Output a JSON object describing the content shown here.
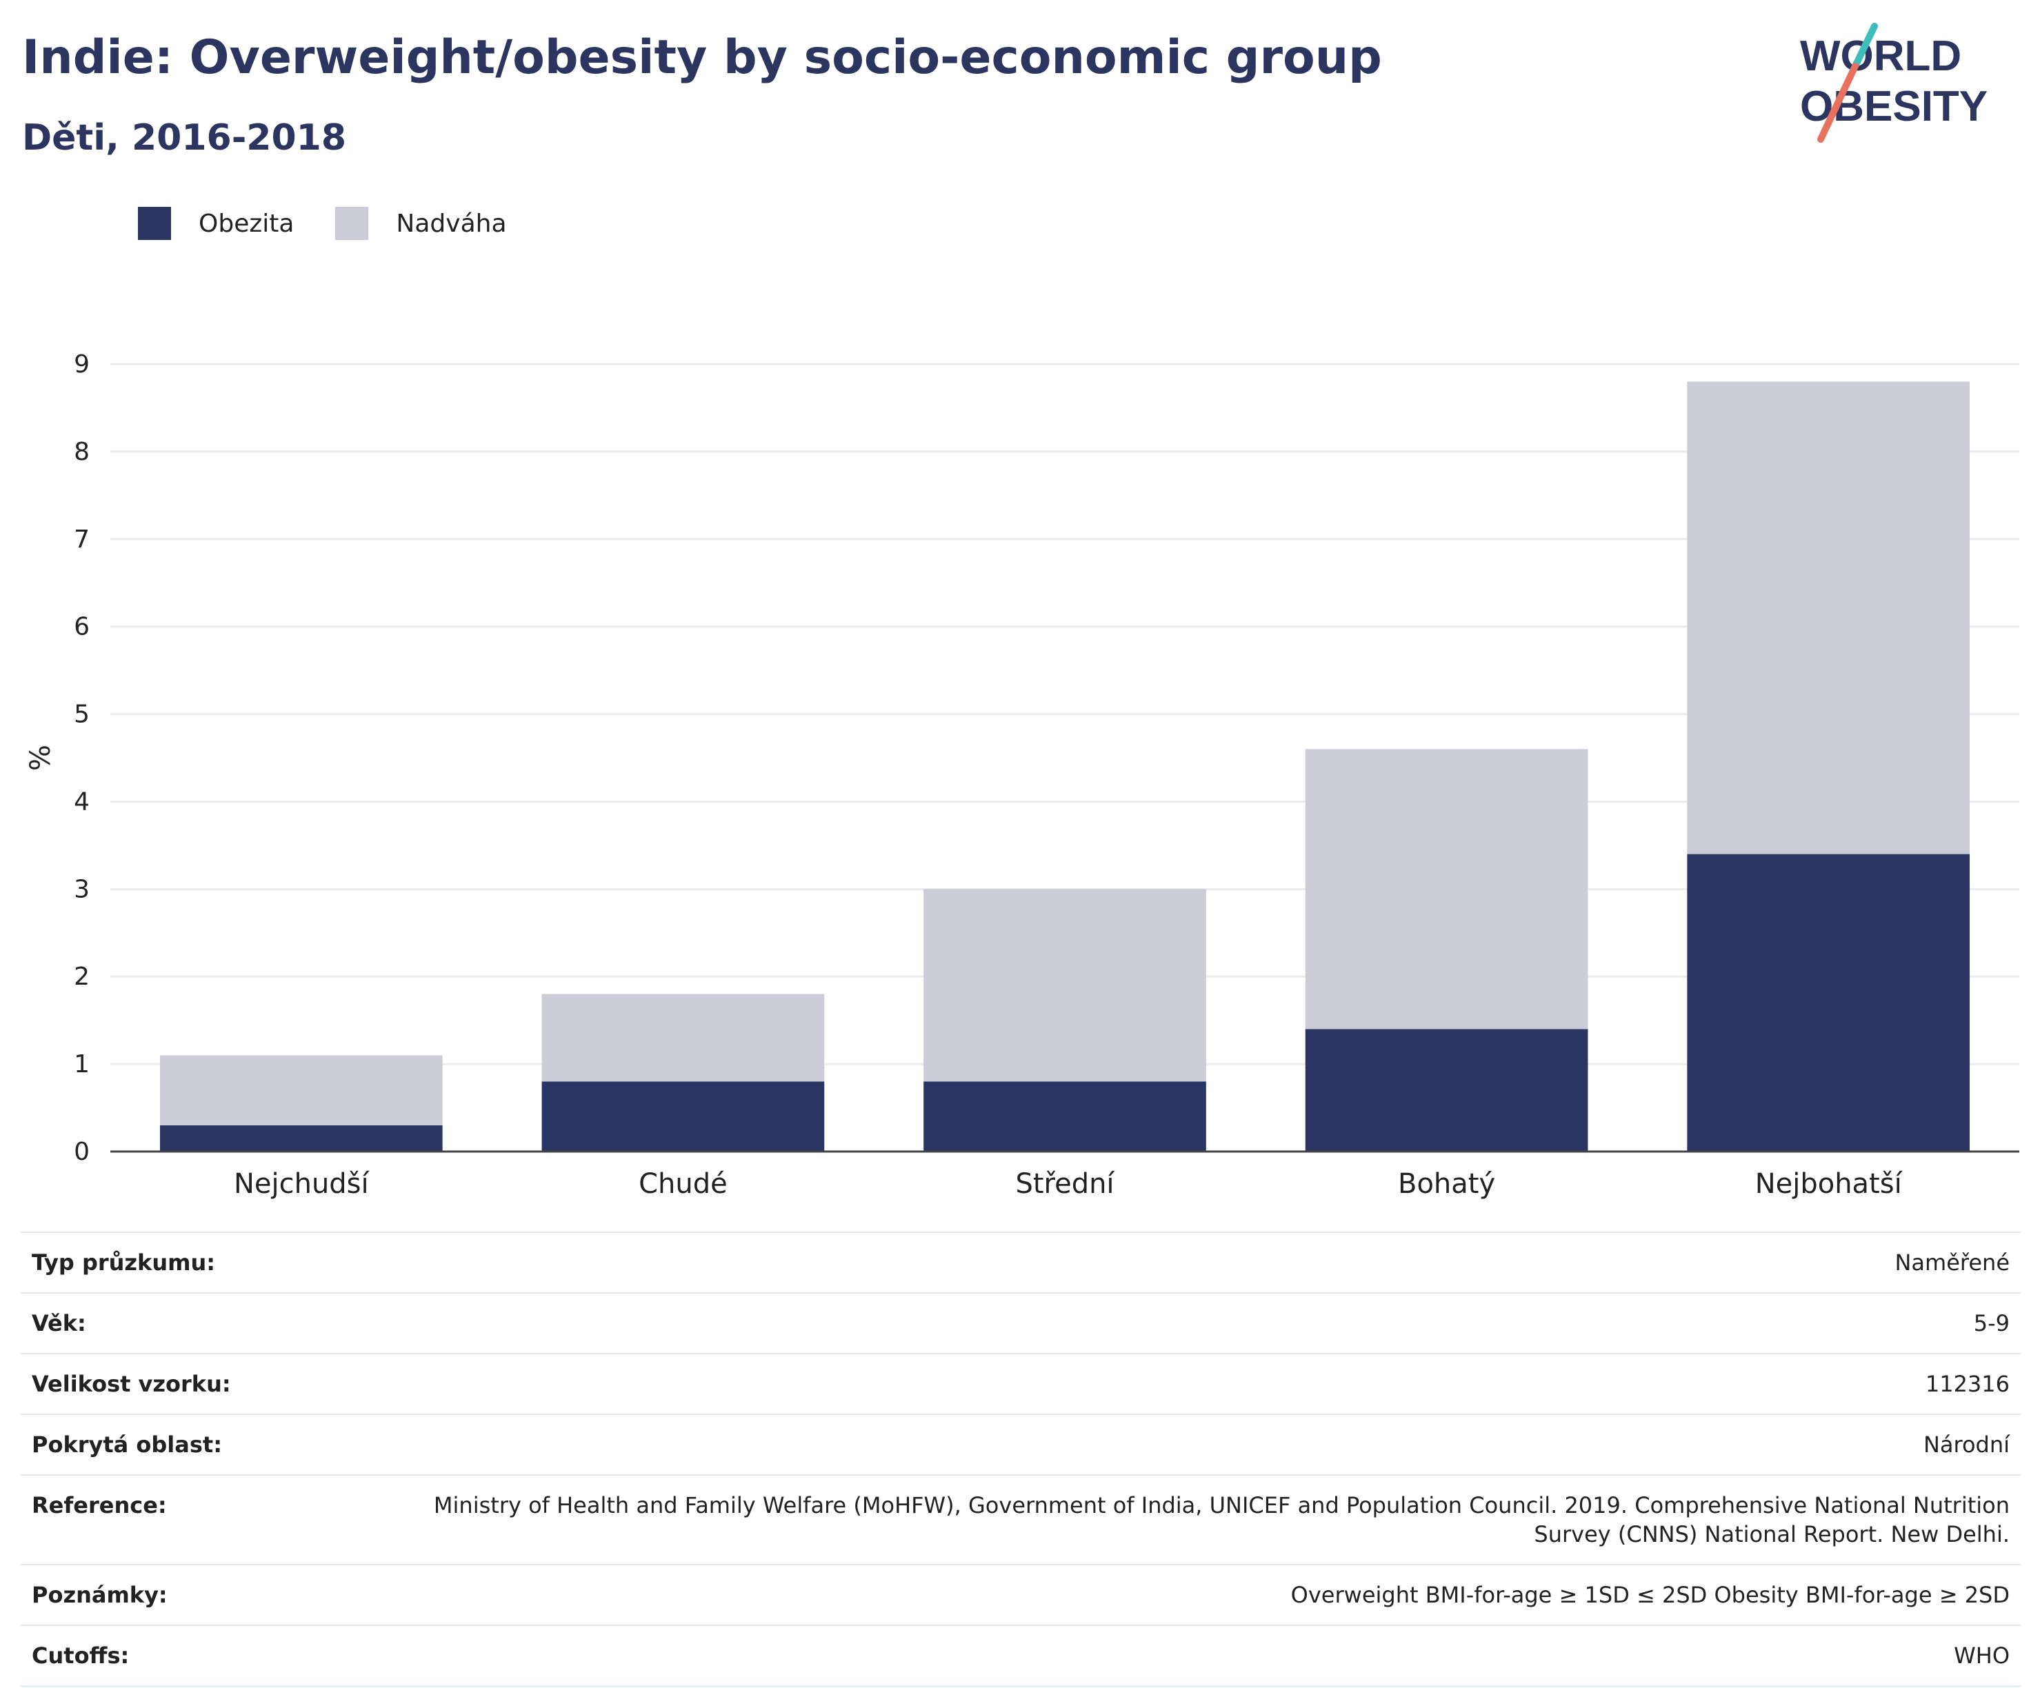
{
  "header": {
    "title": "Indie: Overweight/obesity by socio-economic group",
    "subtitle": "Děti, 2016-2018"
  },
  "logo": {
    "line1": "WORLD",
    "line2": "OBESITY",
    "colors": {
      "text": "#2c3560",
      "slash_top": "#3dbdbb",
      "slash_bottom": "#e8705f"
    }
  },
  "legend": [
    {
      "label": "Obezita",
      "color": "#2a3564"
    },
    {
      "label": "Nadváha",
      "color": "#cbccd7"
    }
  ],
  "chart_data": {
    "type": "bar",
    "stacked": true,
    "categories": [
      "Nejchudší",
      "Chudé",
      "Střední",
      "Bohatý",
      "Nejbohatší"
    ],
    "series": [
      {
        "name": "Obezita",
        "values": [
          0.3,
          0.8,
          0.8,
          1.4,
          3.4
        ],
        "color": "#2a3564"
      },
      {
        "name": "Nadváha",
        "values": [
          0.8,
          1.0,
          2.2,
          3.2,
          5.4
        ],
        "color": "#cbccd7"
      }
    ],
    "ylabel": "%",
    "xlabel": "",
    "ylim": [
      0,
      9
    ],
    "yticks": [
      0,
      1,
      2,
      3,
      4,
      5,
      6,
      7,
      8,
      9
    ],
    "grid": true,
    "legend_position": "top-left"
  },
  "metadata": [
    {
      "label": "Typ průzkumu:",
      "value": "Naměřené"
    },
    {
      "label": "Věk:",
      "value": "5-9"
    },
    {
      "label": "Velikost vzorku:",
      "value": "112316"
    },
    {
      "label": "Pokrytá oblast:",
      "value": "Národní"
    },
    {
      "label": "Reference:",
      "value": "Ministry of Health and Family Welfare (MoHFW), Government of India, UNICEF and Population Council. 2019. Comprehensive National Nutrition Survey (CNNS) National Report. New Delhi."
    },
    {
      "label": "Poznámky:",
      "value": "Overweight BMI-for-age ≥ 1SD ≤ 2SD Obesity BMI-for-age ≥ 2SD"
    },
    {
      "label": "Cutoffs:",
      "value": "WHO"
    }
  ]
}
